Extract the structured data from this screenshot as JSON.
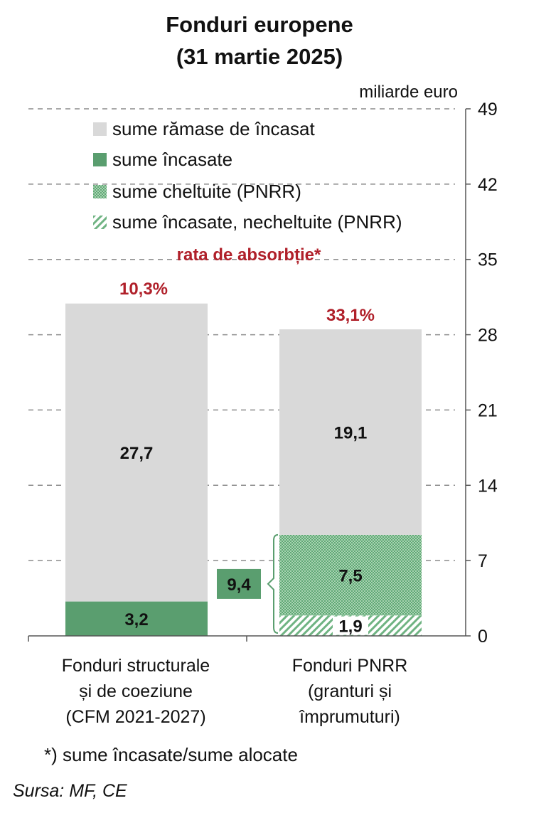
{
  "title_line1": "Fonduri europene",
  "title_line2": "(31 martie 2025)",
  "unit": "miliarde euro",
  "legend": {
    "remaining": "sume rămase de încasat",
    "received": "sume încasate",
    "spent": "sume cheltuite (PNRR)",
    "unspent": "sume încasate, necheltuite (PNRR)"
  },
  "absorption_label": "rata de absorbție*",
  "colors": {
    "remaining": "#d9d9d9",
    "received": "#5a9e6f",
    "spent": "#92c89e",
    "accent_red": "#b0202a"
  },
  "chart_data": {
    "type": "bar",
    "stacked": true,
    "categories": [
      "Fonduri structurale și de coeziune (CFM 2021-2027)",
      "Fonduri PNRR (granturi și împrumuturi)"
    ],
    "category_lines": [
      [
        "Fonduri  structurale",
        "și de coeziune",
        "(CFM 2021-2027)"
      ],
      [
        "Fonduri  PNRR",
        "(granturi și",
        "împrumuturi)"
      ]
    ],
    "series": [
      {
        "name": "sume încasate",
        "values": [
          3.2,
          null
        ],
        "labels": [
          "3,2",
          ""
        ]
      },
      {
        "name": "sume încasate, necheltuite (PNRR)",
        "values": [
          null,
          1.9
        ],
        "labels": [
          "",
          "1,9"
        ]
      },
      {
        "name": "sume cheltuite (PNRR)",
        "values": [
          null,
          7.5
        ],
        "labels": [
          "",
          "7,5"
        ]
      },
      {
        "name": "sume rămase de încasat",
        "values": [
          27.7,
          19.1
        ],
        "labels": [
          "27,7",
          "19,1"
        ]
      }
    ],
    "absorption_rates": [
      "10,3%",
      "33,1%"
    ],
    "bracket_total": "9,4",
    "ylim": [
      0,
      49
    ],
    "yticks": [
      0,
      7,
      14,
      21,
      28,
      35,
      42,
      49
    ],
    "y_axis_side": "right",
    "grid": "dashed horizontal",
    "legend_position": "top-left"
  },
  "footnote": "*) sume încasate/sume alocate",
  "source": "Sursa: MF, CE"
}
